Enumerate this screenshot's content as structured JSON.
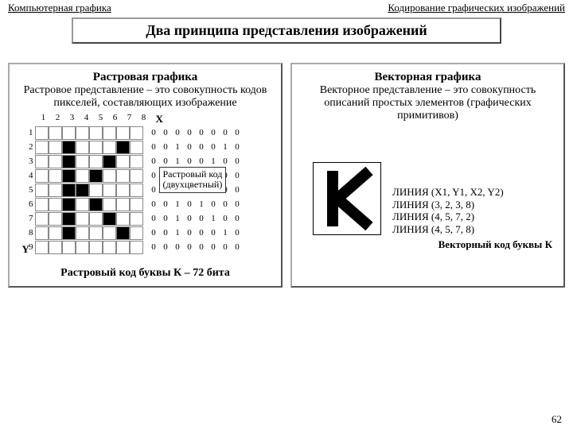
{
  "header": {
    "left": "Компьютерная графика",
    "right": "Кодирование графических изображений"
  },
  "title": "Два принципа представления изображений",
  "raster": {
    "title": "Растровая графика",
    "subtitle": "Растровое представление – это совокупность кодов пикселей, составляющих изображение",
    "x_label": "X",
    "y_label": "Y",
    "cols": [
      1,
      2,
      3,
      4,
      5,
      6,
      7,
      8
    ],
    "rows": [
      1,
      2,
      3,
      4,
      5,
      6,
      7,
      8,
      9
    ],
    "grid": [
      [
        0,
        0,
        0,
        0,
        0,
        0,
        0,
        0
      ],
      [
        0,
        0,
        1,
        0,
        0,
        0,
        1,
        0
      ],
      [
        0,
        0,
        1,
        0,
        0,
        1,
        0,
        0
      ],
      [
        0,
        0,
        1,
        0,
        1,
        0,
        0,
        0
      ],
      [
        0,
        0,
        1,
        1,
        0,
        0,
        0,
        0
      ],
      [
        0,
        0,
        1,
        0,
        1,
        0,
        0,
        0
      ],
      [
        0,
        0,
        1,
        0,
        0,
        1,
        0,
        0
      ],
      [
        0,
        0,
        1,
        0,
        0,
        0,
        1,
        0
      ],
      [
        0,
        0,
        0,
        0,
        0,
        0,
        0,
        0
      ]
    ],
    "callout": "Растровый код\n(двухцветный)",
    "caption": "Растровый код буквы К – 72 бита"
  },
  "vector": {
    "title": "Векторная графика",
    "subtitle": "Векторное представление – это совокупность описаний простых элементов (графических примитивов)",
    "lines": [
      "ЛИНИЯ (X1, Y1, X2, Y2)",
      "ЛИНИЯ (3, 2, 3, 8)",
      "ЛИНИЯ (4, 5, 7, 2)",
      "ЛИНИЯ (4, 5, 7, 8)"
    ],
    "caption": "Векторный код буквы К",
    "color": "#000000"
  },
  "page": "62"
}
